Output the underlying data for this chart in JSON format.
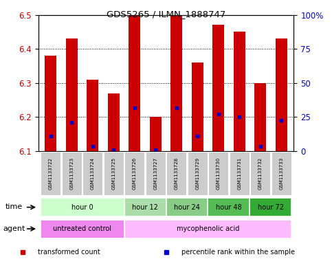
{
  "title": "GDS5265 / ILMN_1888747",
  "samples": [
    "GSM1133722",
    "GSM1133723",
    "GSM1133724",
    "GSM1133725",
    "GSM1133726",
    "GSM1133727",
    "GSM1133728",
    "GSM1133729",
    "GSM1133730",
    "GSM1133731",
    "GSM1133732",
    "GSM1133733"
  ],
  "bar_bottom": 6.1,
  "transformed_counts": [
    6.38,
    6.43,
    6.31,
    6.27,
    6.5,
    6.2,
    6.5,
    6.36,
    6.47,
    6.45,
    6.3,
    6.43
  ],
  "percentile_values": [
    6.145,
    6.185,
    6.115,
    6.105,
    6.228,
    6.105,
    6.228,
    6.145,
    6.208,
    6.2,
    6.115,
    6.19
  ],
  "ylim_left": [
    6.1,
    6.5
  ],
  "ylim_right": [
    0,
    100
  ],
  "yticks_left": [
    6.1,
    6.2,
    6.3,
    6.4,
    6.5
  ],
  "ytick_labels_left": [
    "6.1",
    "6.2",
    "6.3",
    "6.4",
    "6.5"
  ],
  "yticks_right": [
    0,
    25,
    50,
    75,
    100
  ],
  "ytick_labels_right": [
    "0",
    "25",
    "50",
    "75",
    "100%"
  ],
  "bar_color": "#cc0000",
  "percentile_color": "#0000cc",
  "time_groups": [
    {
      "label": "hour 0",
      "start": 0,
      "end": 3,
      "color": "#ccffcc"
    },
    {
      "label": "hour 12",
      "start": 4,
      "end": 5,
      "color": "#aaddaa"
    },
    {
      "label": "hour 24",
      "start": 6,
      "end": 7,
      "color": "#88cc88"
    },
    {
      "label": "hour 48",
      "start": 8,
      "end": 9,
      "color": "#55bb55"
    },
    {
      "label": "hour 72",
      "start": 10,
      "end": 11,
      "color": "#33aa33"
    }
  ],
  "agent_groups": [
    {
      "label": "untreated control",
      "start": 0,
      "end": 3,
      "color": "#ee88ee"
    },
    {
      "label": "mycophenolic acid",
      "start": 4,
      "end": 11,
      "color": "#ffbbff"
    }
  ],
  "legend_items": [
    {
      "label": "transformed count",
      "color": "#cc0000"
    },
    {
      "label": "percentile rank within the sample",
      "color": "#0000cc"
    }
  ],
  "bar_width": 0.55,
  "sample_bg_color": "#cccccc",
  "left_label_color": "#cc0000",
  "right_label_color": "#0000cc"
}
